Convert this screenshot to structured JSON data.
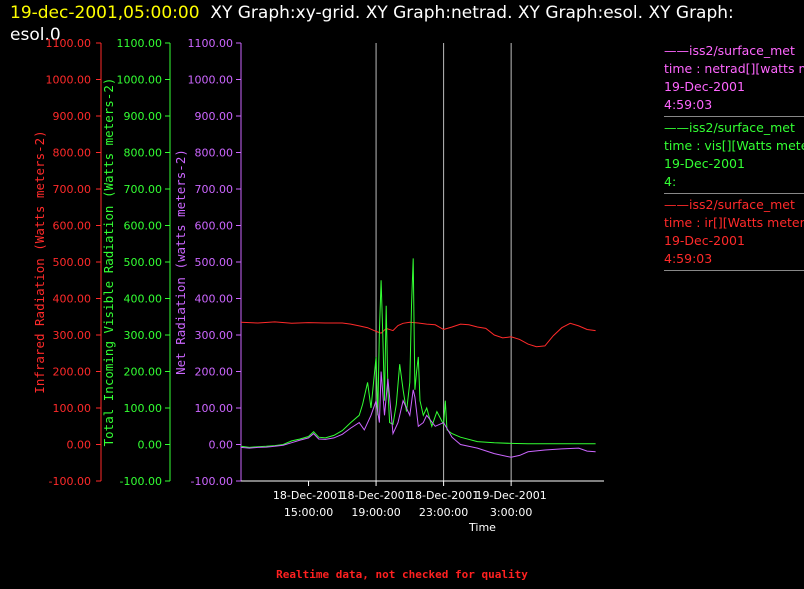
{
  "header": {
    "timestamp": "19-dec-2001,05:00:00",
    "titles": "XY Graph:xy-grid.  XY Graph:netrad.  XY Graph:esol.  XY Graph:",
    "titles_wrap": "esol.0"
  },
  "footer": {
    "text": "Realtime data, not checked for quality"
  },
  "legend": [
    {
      "series": "netrad",
      "color": "#ff66ff",
      "lines": [
        "——iss2/surface_met",
        "time : netrad[][watts meters",
        "19-Dec-2001",
        "4:59:03"
      ]
    },
    {
      "series": "vis",
      "color": "#33ff33",
      "lines": [
        "——iss2/surface_met",
        "time : vis[][Watts meters",
        "19-Dec-2001",
        "4:"
      ]
    },
    {
      "series": "ir",
      "color": "#ff2a2a",
      "lines": [
        "——iss2/surface_met",
        "time : ir[][Watts meters",
        "19-Dec-2001",
        "4:59:03"
      ]
    }
  ],
  "chart_data": {
    "type": "line",
    "xlabel": "Time",
    "xlim": [
      11.0,
      32.5
    ],
    "x_ticks": [
      {
        "value": 15,
        "label": [
          "18-Dec-2001",
          "15:00:00"
        ]
      },
      {
        "value": 19,
        "label": [
          "18-Dec-2001",
          "19:00:00"
        ]
      },
      {
        "value": 23,
        "label": [
          "18-Dec-2001",
          "23:00:00"
        ]
      },
      {
        "value": 27,
        "label": [
          "19-Dec-2001",
          "3:00:00"
        ]
      }
    ],
    "x_grid": [
      19,
      23,
      27
    ],
    "y_axes": [
      {
        "id": "ir",
        "label": "Infrared Radiation (Watts meters-2)",
        "color": "#ff2a2a",
        "ylim": [
          -100,
          1100
        ],
        "ticks": [
          "-100.00",
          "0.00",
          "100.00",
          "200.00",
          "300.00",
          "400.00",
          "500.00",
          "600.00",
          "700.00",
          "800.00",
          "900.00",
          "1000.00",
          "1100.00"
        ]
      },
      {
        "id": "vis",
        "label": "Total Incoming Visible Radiation (Watts meters-2)",
        "color": "#33ff33",
        "ylim": [
          -100,
          1100
        ],
        "ticks": [
          "-100.00",
          "0.00",
          "100.00",
          "200.00",
          "300.00",
          "400.00",
          "500.00",
          "600.00",
          "700.00",
          "800.00",
          "900.00",
          "1000.00",
          "1100.00"
        ]
      },
      {
        "id": "netrad",
        "label": "Net Radiation (watts meters-2)",
        "color": "#cc66ff",
        "ylim": [
          -100,
          1100
        ],
        "ticks": [
          "-100.00",
          "0.00",
          "100.00",
          "200.00",
          "300.00",
          "400.00",
          "500.00",
          "600.00",
          "700.00",
          "800.00",
          "900.00",
          "1000.00",
          "1100.00"
        ]
      }
    ],
    "series": [
      {
        "name": "ir",
        "color": "#ff2a2a",
        "x": [
          11.0,
          12.0,
          13.0,
          14.0,
          15.0,
          16.0,
          17.0,
          17.5,
          18.0,
          18.5,
          19.0,
          19.3,
          19.6,
          20.0,
          20.3,
          20.6,
          21.0,
          21.5,
          22.0,
          22.5,
          23.0,
          23.5,
          24.0,
          24.5,
          25.0,
          25.5,
          26.0,
          26.5,
          27.0,
          27.5,
          28.0,
          28.5,
          29.0,
          29.5,
          30.0,
          30.5,
          31.0,
          31.5,
          32.0
        ],
        "y": [
          335,
          333,
          336,
          332,
          334,
          333,
          333,
          330,
          325,
          320,
          310,
          305,
          318,
          312,
          326,
          332,
          335,
          333,
          330,
          328,
          315,
          322,
          330,
          328,
          322,
          318,
          300,
          292,
          295,
          288,
          275,
          268,
          270,
          298,
          320,
          332,
          325,
          315,
          312
        ]
      },
      {
        "name": "vis",
        "color": "#33ff33",
        "x": [
          11.0,
          11.5,
          12.0,
          12.5,
          13.0,
          13.5,
          14.0,
          14.5,
          15.0,
          15.3,
          15.6,
          16.0,
          16.5,
          17.0,
          17.5,
          18.0,
          18.2,
          18.5,
          18.7,
          19.0,
          19.1,
          19.2,
          19.3,
          19.4,
          19.5,
          19.6,
          19.7,
          19.8,
          20.0,
          20.2,
          20.4,
          20.6,
          20.8,
          21.0,
          21.1,
          21.2,
          21.3,
          21.4,
          21.5,
          21.6,
          21.8,
          22.0,
          22.3,
          22.6,
          23.0,
          23.1,
          23.2,
          23.5,
          24.0,
          25.0,
          26.0,
          27.0,
          28.0,
          29.0,
          30.0,
          31.0,
          32.0
        ],
        "y": [
          -5,
          -8,
          -6,
          -5,
          -3,
          0,
          10,
          15,
          22,
          35,
          20,
          18,
          25,
          38,
          60,
          80,
          110,
          170,
          100,
          240,
          80,
          310,
          450,
          300,
          120,
          380,
          150,
          60,
          55,
          110,
          220,
          150,
          90,
          170,
          380,
          510,
          150,
          200,
          240,
          120,
          80,
          100,
          50,
          90,
          55,
          120,
          40,
          30,
          20,
          8,
          5,
          3,
          2,
          2,
          2,
          2,
          2
        ]
      },
      {
        "name": "netrad",
        "color": "#cc66ff",
        "x": [
          11.0,
          11.5,
          12.0,
          12.5,
          13.0,
          13.5,
          14.0,
          14.5,
          15.0,
          15.3,
          15.6,
          16.0,
          16.5,
          17.0,
          17.5,
          18.0,
          18.3,
          18.7,
          19.0,
          19.2,
          19.3,
          19.5,
          19.7,
          20.0,
          20.3,
          20.6,
          21.0,
          21.2,
          21.3,
          21.5,
          21.8,
          22.0,
          22.5,
          23.0,
          23.5,
          24.0,
          25.0,
          26.0,
          27.0,
          27.5,
          28.0,
          29.0,
          30.0,
          31.0,
          31.5,
          32.0
        ],
        "y": [
          -8,
          -10,
          -8,
          -7,
          -5,
          -2,
          5,
          12,
          18,
          30,
          15,
          14,
          18,
          28,
          45,
          60,
          40,
          80,
          120,
          60,
          200,
          80,
          180,
          30,
          60,
          120,
          80,
          150,
          130,
          50,
          60,
          80,
          50,
          60,
          20,
          0,
          -10,
          -25,
          -35,
          -30,
          -20,
          -15,
          -12,
          -10,
          -18,
          -20
        ]
      }
    ]
  }
}
